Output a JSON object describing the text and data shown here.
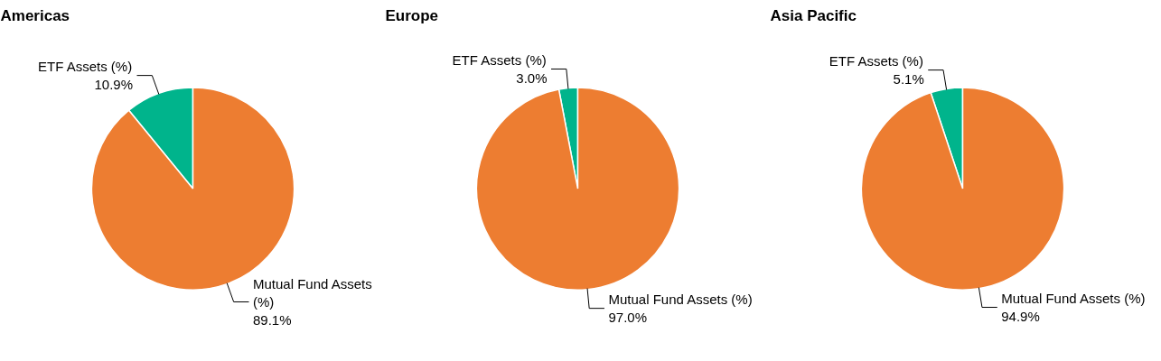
{
  "chart_data": [
    {
      "type": "pie",
      "title": "Americas",
      "categories": [
        "ETF Assets (%)",
        "Mutual Fund Assets (%)"
      ],
      "values": [
        10.9,
        89.1
      ],
      "value_labels": [
        "10.9%",
        "89.1%"
      ],
      "colors": [
        "#00b48c",
        "#ed7d31"
      ]
    },
    {
      "type": "pie",
      "title": "Europe",
      "categories": [
        "ETF Assets (%)",
        "Mutual Fund Assets (%)"
      ],
      "values": [
        3.0,
        97.0
      ],
      "value_labels": [
        "3.0%",
        "97.0%"
      ],
      "colors": [
        "#00b48c",
        "#ed7d31"
      ]
    },
    {
      "type": "pie",
      "title": "Asia Pacific",
      "categories": [
        "ETF Assets (%)",
        "Mutual Fund Assets (%)"
      ],
      "values": [
        5.1,
        94.9
      ],
      "value_labels": [
        "5.1%",
        "94.9%"
      ],
      "colors": [
        "#00b48c",
        "#ed7d31"
      ]
    }
  ]
}
